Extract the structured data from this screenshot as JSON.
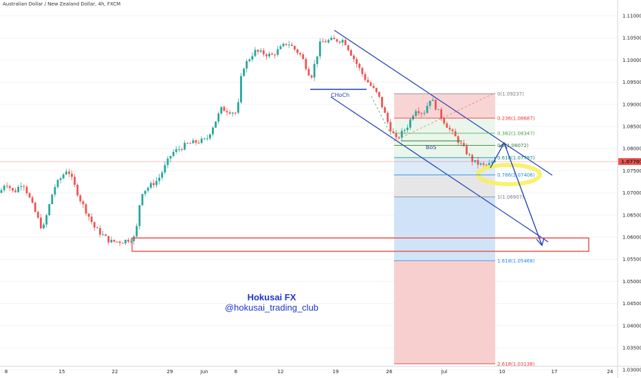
{
  "chart_data": {
    "type": "candlestick",
    "title": "Australian Dollar / New Zealand Dollar, 4h, FXCM",
    "current_price": "1.07707",
    "y_ticks": [
      "1.11000",
      "1.10500",
      "1.10000",
      "1.09500",
      "1.09000",
      "1.08500",
      "1.08000",
      "1.07500",
      "1.07000",
      "1.06500",
      "1.06000",
      "1.05500",
      "1.05000",
      "1.04500",
      "1.04000",
      "1.03500",
      "1.03000"
    ],
    "ylim": [
      1.026,
      1.114
    ],
    "x_ticks": [
      "8",
      "15",
      "22",
      "29",
      "Jun",
      "6",
      "12",
      "19",
      "26",
      "Jul",
      "10",
      "17",
      "24"
    ],
    "price_path": [
      {
        "t": 0,
        "p": 1.07
      },
      {
        "t": 8,
        "p": 1.0725
      },
      {
        "t": 20,
        "p": 1.07
      },
      {
        "t": 33,
        "p": 1.0725
      },
      {
        "t": 45,
        "p": 1.068
      },
      {
        "t": 62,
        "p": 1.0615
      },
      {
        "t": 78,
        "p": 1.071
      },
      {
        "t": 98,
        "p": 1.0755
      },
      {
        "t": 118,
        "p": 1.068
      },
      {
        "t": 138,
        "p": 1.062
      },
      {
        "t": 160,
        "p": 1.059
      },
      {
        "t": 178,
        "p": 1.059
      },
      {
        "t": 197,
        "p": 1.06
      },
      {
        "t": 205,
        "p": 1.07
      },
      {
        "t": 230,
        "p": 1.073
      },
      {
        "t": 250,
        "p": 1.079
      },
      {
        "t": 272,
        "p": 1.081
      },
      {
        "t": 300,
        "p": 1.082
      },
      {
        "t": 322,
        "p": 1.089
      },
      {
        "t": 345,
        "p": 1.088
      },
      {
        "t": 352,
        "p": 1.098
      },
      {
        "t": 370,
        "p": 1.102
      },
      {
        "t": 395,
        "p": 1.101
      },
      {
        "t": 418,
        "p": 1.104
      },
      {
        "t": 438,
        "p": 1.101
      },
      {
        "t": 452,
        "p": 1.096
      },
      {
        "t": 466,
        "p": 1.104
      },
      {
        "t": 482,
        "p": 1.1045
      },
      {
        "t": 500,
        "p": 1.1045
      },
      {
        "t": 512,
        "p": 1.101
      },
      {
        "t": 530,
        "p": 1.096
      },
      {
        "t": 550,
        "p": 1.092
      },
      {
        "t": 566,
        "p": 1.085
      },
      {
        "t": 576,
        "p": 1.082
      },
      {
        "t": 592,
        "p": 1.085
      },
      {
        "t": 604,
        "p": 1.089
      },
      {
        "t": 616,
        "p": 1.088
      },
      {
        "t": 626,
        "p": 1.0915
      },
      {
        "t": 642,
        "p": 1.087
      },
      {
        "t": 655,
        "p": 1.084
      },
      {
        "t": 670,
        "p": 1.081
      },
      {
        "t": 688,
        "p": 1.077
      },
      {
        "t": 705,
        "p": 1.076
      },
      {
        "t": 720,
        "p": 1.077
      }
    ],
    "fibonacci": [
      {
        "ratio": "0",
        "price": "1.09237",
        "label": "0(1.09237)",
        "color": "#787b86"
      },
      {
        "ratio": "0.236",
        "price": "1.08687",
        "label": "0.236(1.08687)",
        "color": "#e53935"
      },
      {
        "ratio": "0.382",
        "price": "1.08347",
        "label": "0.382(1.08347)",
        "color": "#43a047"
      },
      {
        "ratio": "0.5",
        "price": "1.08072",
        "label": "0.5(1.08072)",
        "color": "#2e7d32"
      },
      {
        "ratio": "0.618",
        "price": "1.07797",
        "label": "0.618(1.07797)",
        "color": "#00897b"
      },
      {
        "ratio": "0.786",
        "price": "1.07406",
        "label": "0.786(1.07406)",
        "color": "#1e88e5"
      },
      {
        "ratio": "1",
        "price": "1.06907",
        "label": "1(1.06907)",
        "color": "#787b86"
      },
      {
        "ratio": "1.618",
        "price": "1.05468",
        "label": "1.618(1.05468)",
        "color": "#1e88e5"
      },
      {
        "ratio": "2.618",
        "price": "1.03138",
        "label": "2.618(1.03138)",
        "color": "#e53935"
      }
    ],
    "annotations": [
      "CHoCh",
      "BoS"
    ],
    "demand_zone": {
      "top": 1.0598,
      "bottom": 1.0568
    },
    "watermark": {
      "line1": "Hokusai FX",
      "line2": "@hokusai_trading_club"
    },
    "colors": {
      "up": "#26a69a",
      "down": "#ef5350",
      "channel": "#1a3bb3",
      "zone": "#ef5350",
      "highlight": "#f7ef5a",
      "price_line": "#ef5350"
    }
  }
}
